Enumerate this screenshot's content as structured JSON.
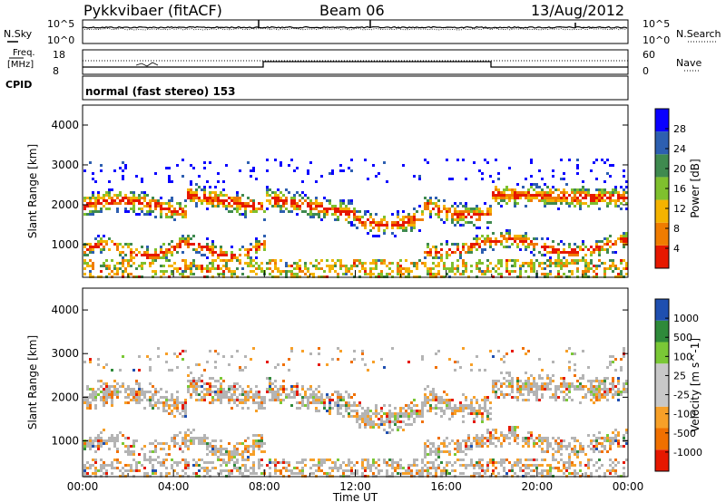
{
  "header": {
    "station": "Pykkvibaer (fitACF)",
    "beam": "Beam 06",
    "date": "13/Aug/2012"
  },
  "summary_panels": {
    "nsky": {
      "label": "N.Sky",
      "ticks": [
        "10^5",
        "10^0"
      ]
    },
    "nsearch": {
      "label": "N.Search",
      "ticks": [
        "10^5",
        "10^0"
      ]
    },
    "freq": {
      "label_top": "Freq.",
      "label_bottom": "[MHz]",
      "ticks": [
        "18",
        "8"
      ]
    },
    "nave": {
      "label": "Nave",
      "ticks": [
        "60",
        "0"
      ]
    },
    "cpid": {
      "label": "CPID",
      "mode_text": "normal (fast stereo) 153"
    }
  },
  "chart_data": [
    {
      "type": "heatmap",
      "title": "",
      "ylabel": "Slant Range [km]",
      "ylim": [
        180,
        4500
      ],
      "xlim": [
        0,
        24
      ],
      "y_ticks": [
        "4000",
        "3000",
        "2000",
        "1000"
      ],
      "colorbar": {
        "label": "Power [dB]",
        "ticks": [
          "28",
          "24",
          "20",
          "16",
          "12",
          "8",
          "4"
        ],
        "colors": [
          "#0a00ff",
          "#2d5fb0",
          "#3f8a4f",
          "#7fc02e",
          "#f4b300",
          "#f07c00",
          "#e61800"
        ]
      },
      "features": [
        {
          "name": "upper band",
          "from_hour": 0,
          "to_hour": 24,
          "range_km": [
            1700,
            2600
          ]
        },
        {
          "name": "lower band",
          "from_hour": 0,
          "to_hour": 24,
          "range_km": [
            600,
            1200
          ]
        },
        {
          "name": "near-range echoes",
          "from_hour": 0,
          "to_hour": 24,
          "range_km": [
            250,
            700
          ]
        }
      ]
    },
    {
      "type": "heatmap",
      "title": "",
      "ylabel": "Slant Range [km]",
      "ylim": [
        180,
        4500
      ],
      "xlim": [
        0,
        24
      ],
      "y_ticks": [
        "4000",
        "3000",
        "2000",
        "1000"
      ],
      "xlabel": "Time UT",
      "x_ticks": [
        "00:00",
        "04:00",
        "08:00",
        "12:00",
        "16:00",
        "20:00",
        "00:00"
      ],
      "colorbar": {
        "label": "Velocity [m s^-1]",
        "ticks": [
          "1000",
          "500",
          "100",
          "25",
          "-25",
          "-100",
          "-500",
          "-1000"
        ],
        "colors": [
          "#1f4fb0",
          "#2f8a3a",
          "#7ac836",
          "#c8c8c8",
          "#c8c8c8",
          "#f7a028",
          "#f07000",
          "#e61800"
        ],
        "ground_scatter": "#b4b4b4"
      }
    }
  ]
}
